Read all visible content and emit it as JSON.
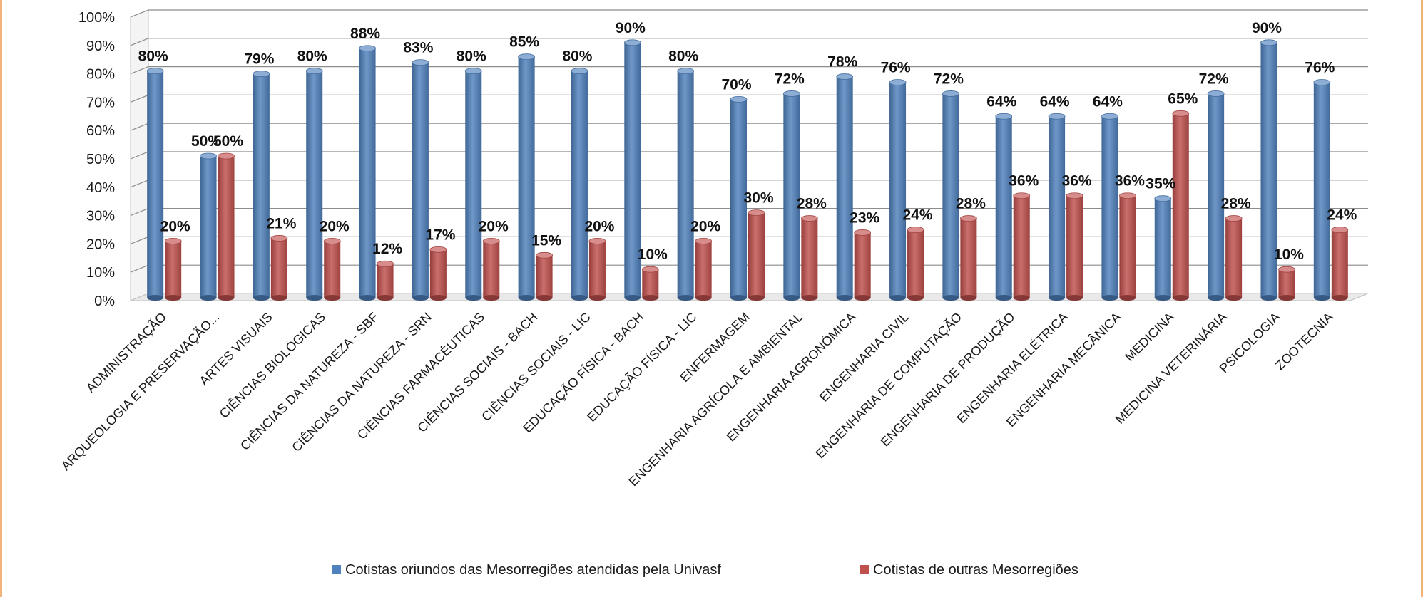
{
  "chart_data": {
    "type": "bar",
    "title": "",
    "xlabel": "",
    "ylabel": "",
    "ylim": [
      0,
      100
    ],
    "y_ticks": [
      "0%",
      "10%",
      "20%",
      "30%",
      "40%",
      "50%",
      "60%",
      "70%",
      "80%",
      "90%",
      "100%"
    ],
    "grid": true,
    "legend_position": "bottom",
    "categories": [
      "ADMINISTRAÇÃO",
      "ARQUEOLOGIA E PRESERVAÇÃO...",
      "ARTES VISUAIS",
      "CIÊNCIAS BIOLÓGICAS",
      "CIÊNCIAS DA NATUREZA - SBF",
      "CIÊNCIAS DA NATUREZA - SRN",
      "CIÊNCIAS FARMACÊUTICAS",
      "CIÊNCIAS SOCIAIS - BACH",
      "CIÊNCIAS SOCIAIS - LIC",
      "EDUCAÇÃO FÍSICA - BACH",
      "EDUCAÇÃO FÍSICA - LIC",
      "ENFERMAGEM",
      "ENGENHARIA AGRÍCOLA E AMBIENTAL",
      "ENGENHARIA AGRONÔMICA",
      "ENGENHARIA CIVIL",
      "ENGENHARIA DE COMPUTAÇÃO",
      "ENGENHARIA DE PRODUÇÃO",
      "ENGENHARIA ELÉTRICA",
      "ENGENHARIA MECÂNICA",
      "MEDICINA",
      "MEDICINA VETERINÁRIA",
      "PSICOLOGIA",
      "ZOOTECNIA"
    ],
    "series": [
      {
        "name": "Cotistas oriundos das Mesorregiões atendidas pela Univasf",
        "color": "#4f81bd",
        "values": [
          80,
          50,
          79,
          80,
          88,
          83,
          80,
          85,
          80,
          90,
          80,
          70,
          72,
          78,
          76,
          72,
          64,
          64,
          64,
          35,
          72,
          90,
          76
        ],
        "labels": [
          "80%",
          "50%",
          "79%",
          "80%",
          "88%",
          "83%",
          "80%",
          "85%",
          "80%",
          "90%",
          "80%",
          "70%",
          "72%",
          "78%",
          "76%",
          "72%",
          "64%",
          "64%",
          "64%",
          "35%",
          "72%",
          "90%",
          "76%"
        ]
      },
      {
        "name": "Cotistas de outras Mesorregiões",
        "color": "#c0504d",
        "values": [
          20,
          50,
          21,
          20,
          12,
          17,
          20,
          15,
          20,
          10,
          20,
          30,
          28,
          23,
          24,
          28,
          36,
          36,
          36,
          65,
          28,
          10,
          24
        ],
        "labels": [
          "20%",
          "50%",
          "21%",
          "20%",
          "12%",
          "17%",
          "20%",
          "15%",
          "20%",
          "10%",
          "20%",
          "30%",
          "28%",
          "23%",
          "24%",
          "28%",
          "36%",
          "36%",
          "36%",
          "65%",
          "28%",
          "10%",
          "24%"
        ]
      }
    ]
  }
}
